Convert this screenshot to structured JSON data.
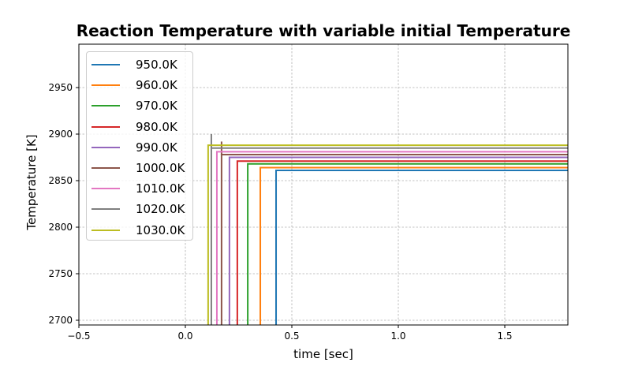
{
  "chart_data": {
    "type": "line",
    "title": "Reaction Temperature with variable initial Temperature",
    "xlabel": "time [sec]",
    "ylabel": "Temperature [K]",
    "xlim": [
      -0.5,
      1.8
    ],
    "ylim": [
      2695,
      3000
    ],
    "xticks": [
      "-0.5",
      "0.0",
      "0.5",
      "1.0",
      "1.5"
    ],
    "yticks": [
      "2700",
      "2750",
      "2800",
      "2850",
      "2900",
      "2950"
    ],
    "grid": true,
    "legend_position": "upper left",
    "series": [
      {
        "name": "950.0K",
        "color": "#1f77b4",
        "ignition_time": 0.426,
        "initial": 950,
        "final": 2861
      },
      {
        "name": "960.0K",
        "color": "#ff7f0e",
        "ignition_time": 0.352,
        "initial": 960,
        "final": 2864
      },
      {
        "name": "970.0K",
        "color": "#2ca02c",
        "ignition_time": 0.293,
        "initial": 970,
        "final": 2868
      },
      {
        "name": "980.0K",
        "color": "#d62728",
        "ignition_time": 0.244,
        "initial": 980,
        "final": 2871
      },
      {
        "name": "990.0K",
        "color": "#9467bd",
        "ignition_time": 0.207,
        "initial": 990,
        "final": 2875
      },
      {
        "name": "1000.0K",
        "color": "#8c564b",
        "ignition_time": 0.17,
        "initial": 1000,
        "final": 2878,
        "peak": 2892
      },
      {
        "name": "1010.0K",
        "color": "#e377c2",
        "ignition_time": 0.148,
        "initial": 1010,
        "final": 2881
      },
      {
        "name": "1020.0K",
        "color": "#7f7f7f",
        "ignition_time": 0.122,
        "initial": 1020,
        "final": 2885,
        "peak": 2900
      },
      {
        "name": "1030.0K",
        "color": "#bcbd22",
        "ignition_time": 0.107,
        "initial": 1030,
        "final": 2888
      }
    ]
  }
}
